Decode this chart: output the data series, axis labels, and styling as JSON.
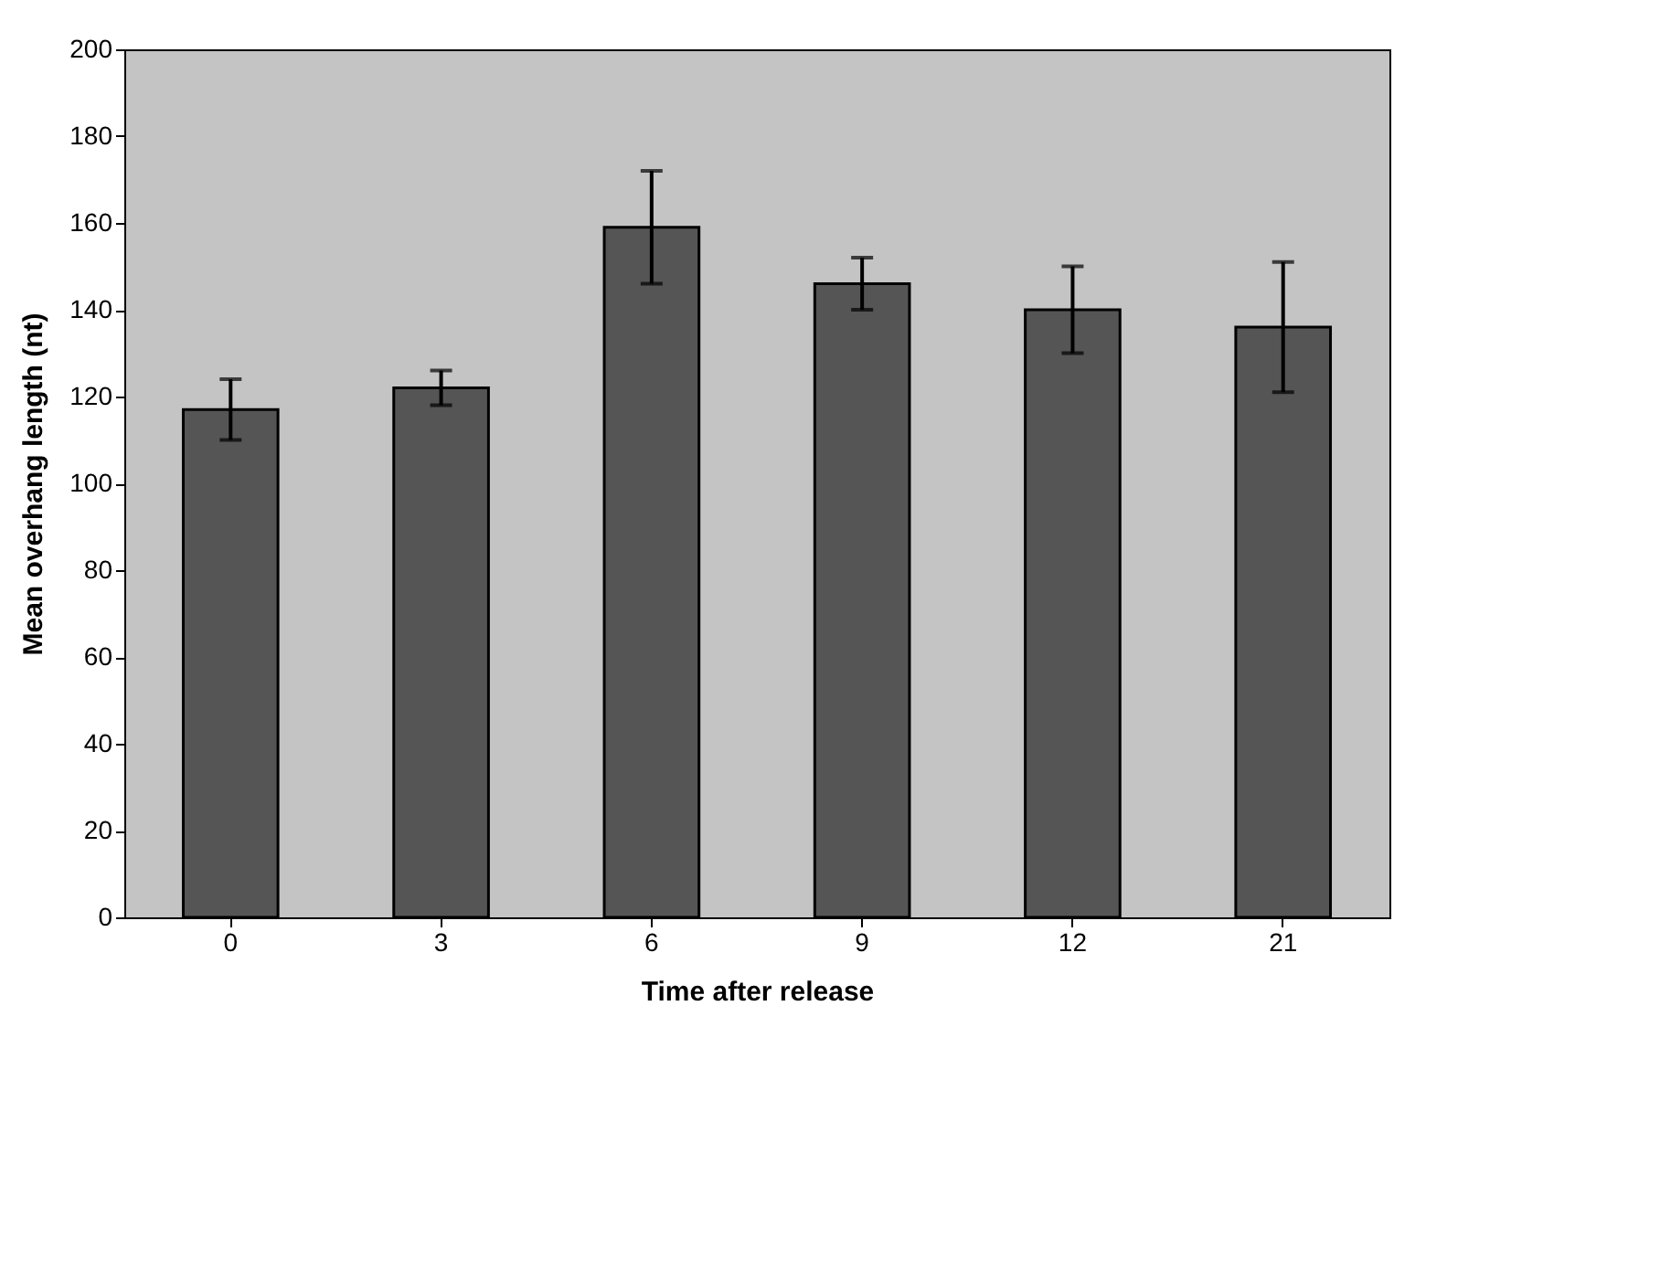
{
  "chart_data": {
    "type": "bar",
    "xlabel": "Time after release",
    "ylabel": "Mean overhang length (nt)",
    "categories": [
      "0",
      "3",
      "6",
      "9",
      "12",
      "21"
    ],
    "values": [
      117,
      122,
      159,
      146,
      140,
      136
    ],
    "errors": [
      7,
      4,
      13,
      6,
      10,
      15
    ],
    "color": "#555555",
    "ylim": [
      0,
      200
    ],
    "yticks": [
      0,
      20,
      40,
      60,
      80,
      100,
      120,
      140,
      160,
      180,
      200
    ],
    "grid": false
  }
}
